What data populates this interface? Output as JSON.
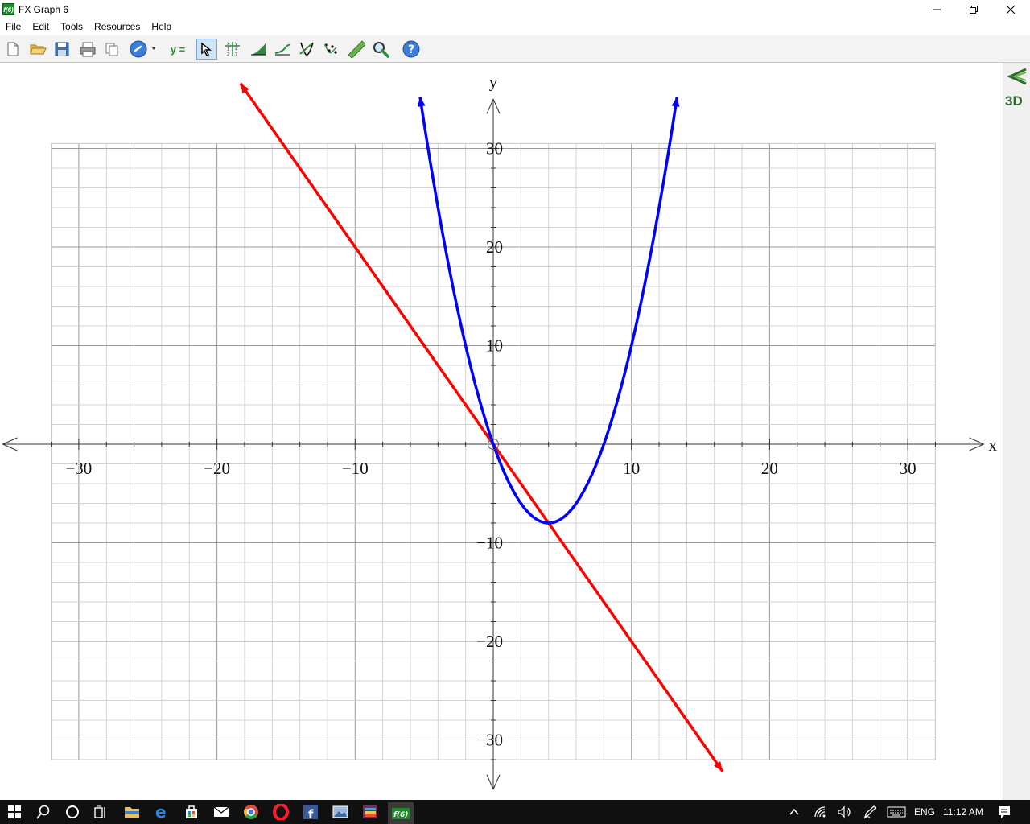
{
  "window": {
    "app_icon_text": "f(6)",
    "title": "FX Graph 6"
  },
  "menu": [
    "File",
    "Edit",
    "Tools",
    "Resources",
    "Help"
  ],
  "toolbar": {
    "equation_label": "y =",
    "tools": [
      "new-file",
      "open-folder",
      "save",
      "print",
      "copy",
      "link",
      "equation",
      "pointer",
      "table",
      "area",
      "tangent",
      "intersection",
      "points",
      "ruler",
      "zoom",
      "help"
    ]
  },
  "side_panel": {
    "view_3d_label": "3D"
  },
  "chart_data": {
    "type": "line",
    "xlabel": "x",
    "ylabel": "y",
    "xlim": [
      -35.5,
      35.5
    ],
    "ylim": [
      -35,
      35
    ],
    "x_ticks": [
      -30,
      -20,
      -10,
      10,
      20,
      30
    ],
    "y_ticks": [
      -30,
      -20,
      -10,
      10,
      20,
      30
    ],
    "x_tick_labels": [
      "−30",
      "−20",
      "−10",
      "10",
      "20",
      "30"
    ],
    "y_tick_labels": [
      "−30",
      "−20",
      "−10",
      "10",
      "20",
      "30"
    ],
    "grid": true,
    "grid_xlim": [
      -32,
      32
    ],
    "grid_ylim": [
      -32,
      30.5
    ],
    "series": [
      {
        "color": "#ff0000",
        "kind": "line",
        "equation": {
          "slope": -2,
          "intercept": 0
        },
        "x_range": [
          -18.3,
          16.6
        ]
      },
      {
        "color": "#0000ff",
        "kind": "parabola",
        "equation": {
          "a": 0.5,
          "b": -4,
          "c": 0
        },
        "x_range": [
          -5.3,
          13.3
        ]
      }
    ],
    "origin_marker": true
  },
  "taskbar": {
    "tray_language": "ENG",
    "clock": "11:12 AM"
  }
}
